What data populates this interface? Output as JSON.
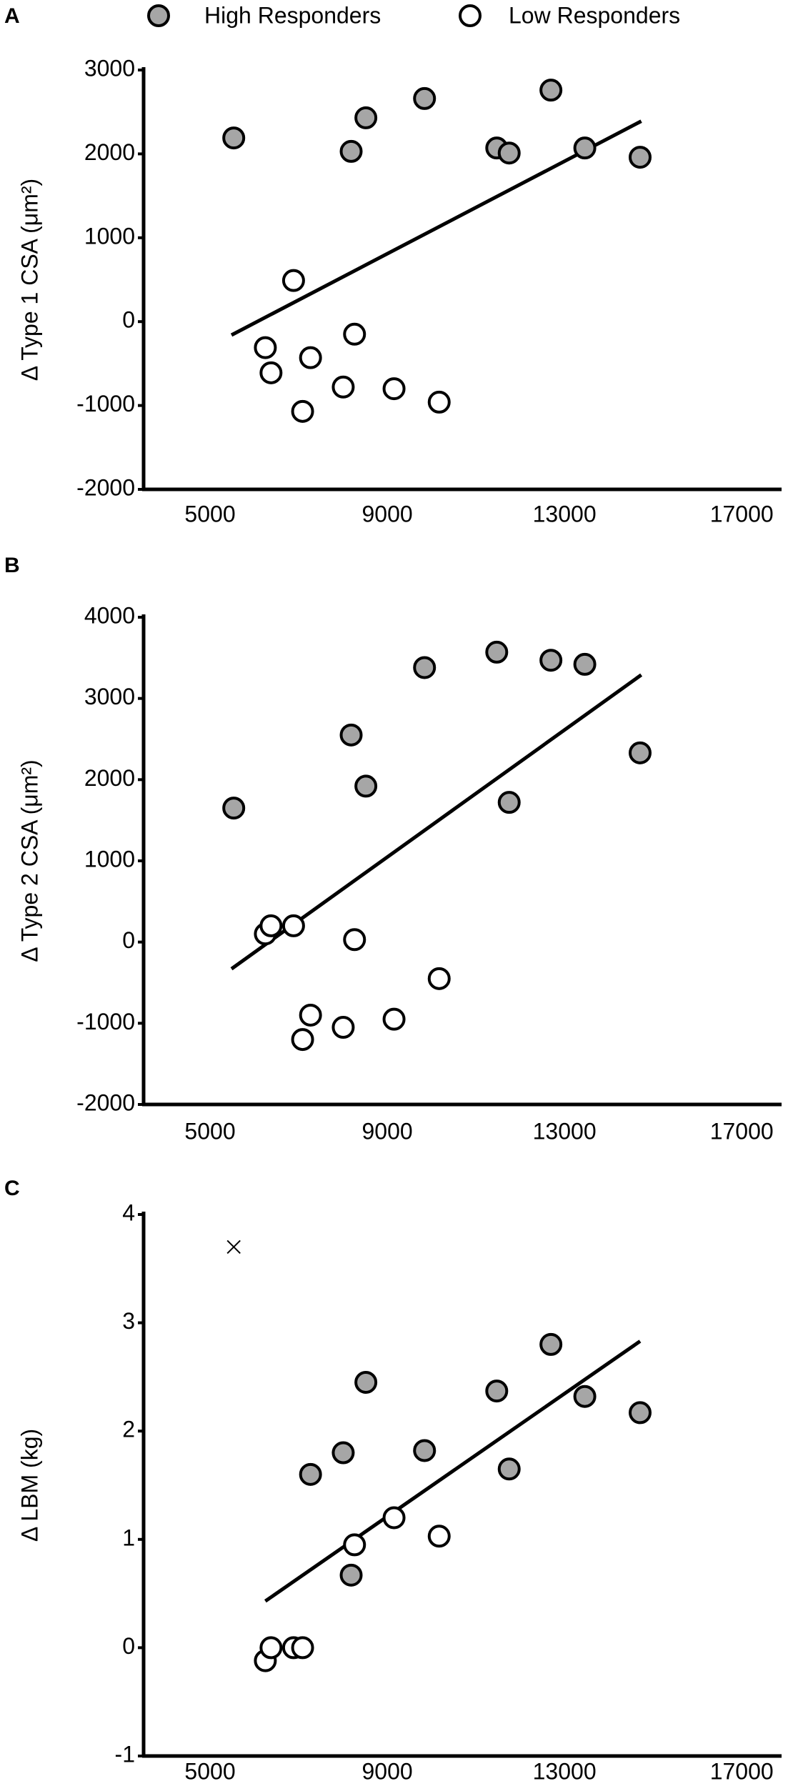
{
  "chart_data": [
    {
      "type": "scatter",
      "label": "A",
      "ylabel": "Δ Type 1 CSA (μm²)",
      "xlim": [
        3500,
        17900
      ],
      "xticks": [
        5000,
        9000,
        13000,
        17000
      ],
      "ylim": [
        -2000,
        3000
      ],
      "yticks": [
        -2000,
        -1000,
        0,
        1000,
        2000,
        3000
      ],
      "series": [
        {
          "name": "High Responders",
          "color": "#a6a6a6",
          "x": [
            5535,
            8185,
            8517,
            9841,
            11471,
            11752,
            12694,
            13459,
            14707
          ],
          "values": [
            2190,
            2030,
            2430,
            2660,
            2070,
            2010,
            2760,
            2070,
            1960
          ]
        },
        {
          "name": "Low Responders",
          "color": "#ffffff",
          "x": [
            6885,
            6248,
            6376,
            7268,
            7089,
            8006,
            8261,
            9153,
            10172
          ],
          "values": [
            490,
            -310,
            -610,
            -430,
            -1070,
            -780,
            -150,
            -800,
            -960
          ]
        }
      ],
      "trend": {
        "x": [
          5484,
          14733
        ],
        "values": [
          -160,
          2390
        ]
      }
    },
    {
      "type": "scatter",
      "label": "B",
      "ylabel": "Δ Type 2 CSA (μm²)",
      "xlim": [
        3500,
        17900
      ],
      "xticks": [
        5000,
        9000,
        13000,
        17000
      ],
      "ylim": [
        -2000,
        4000
      ],
      "yticks": [
        -2000,
        -1000,
        0,
        1000,
        2000,
        3000,
        4000
      ],
      "series": [
        {
          "color": "#a6a6a6",
          "x": [
            5535,
            8185,
            8517,
            9841,
            11471,
            11752,
            12694,
            13459,
            14707
          ],
          "values": [
            1650,
            2550,
            1920,
            3380,
            3570,
            1720,
            3470,
            3420,
            2330
          ]
        },
        {
          "color": "#ffffff",
          "x": [
            6248,
            6376,
            6885,
            7268,
            7089,
            8006,
            8261,
            9153,
            10172
          ],
          "values": [
            100,
            200,
            200,
            -900,
            -1200,
            -1050,
            30,
            -950,
            -450
          ]
        }
      ],
      "trend": {
        "x": [
          5484,
          14733
        ],
        "values": [
          -330,
          3290
        ]
      }
    },
    {
      "type": "scatter",
      "label": "C",
      "ylabel": "Δ LBM (kg)",
      "xlim": [
        3500,
        17900
      ],
      "xticks": [
        5000,
        9000,
        13000,
        17000
      ],
      "ylim": [
        -1,
        4
      ],
      "yticks": [
        -1,
        0,
        1,
        2,
        3,
        4
      ],
      "series": [
        {
          "color": "#a6a6a6",
          "x": [
            7268,
            8006,
            8185,
            8517,
            9841,
            11471,
            11752,
            12694,
            13459,
            14707
          ],
          "values": [
            1.6,
            1.8,
            0.67,
            2.45,
            1.82,
            2.37,
            1.65,
            2.8,
            2.32,
            2.17
          ]
        },
        {
          "color": "#ffffff",
          "x": [
            6248,
            6376,
            6885,
            7089,
            8261,
            9153,
            10172
          ],
          "values": [
            -0.12,
            0,
            0,
            0,
            0.95,
            1.2,
            1.03
          ]
        },
        {
          "marker": "x",
          "x": [
            5535
          ],
          "values": [
            3.7
          ]
        }
      ],
      "trend": {
        "x": [
          6248,
          14707
        ],
        "values": [
          0.43,
          2.83
        ]
      }
    }
  ]
}
